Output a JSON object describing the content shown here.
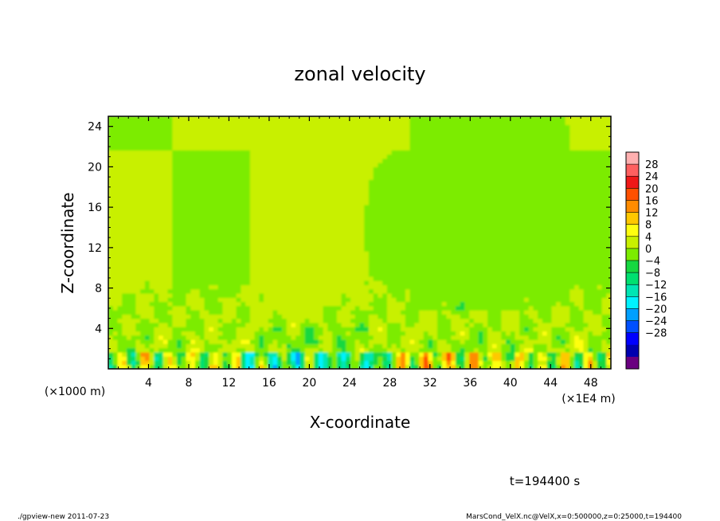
{
  "chart_data": {
    "type": "heatmap",
    "title": "zonal velocity",
    "xlabel": "X-coordinate",
    "ylabel": "Z-coordinate",
    "x_unit_label": "(×1E4 m)",
    "y_unit_label": "(×1000 m)",
    "xlim": [
      0,
      50
    ],
    "ylim": [
      0,
      25
    ],
    "x_ticks": [
      4,
      8,
      12,
      16,
      20,
      24,
      28,
      32,
      36,
      40,
      44,
      48
    ],
    "y_ticks": [
      4,
      8,
      12,
      16,
      20,
      24
    ],
    "colorbar": {
      "levels": [
        28,
        24,
        20,
        16,
        12,
        8,
        4,
        0,
        -4,
        -8,
        -12,
        -16,
        -20,
        -24,
        -28
      ],
      "colors": [
        "#ffb0b0",
        "#ff6060",
        "#f01818",
        "#ff5000",
        "#ff8c00",
        "#ffc800",
        "#ffff10",
        "#c8f000",
        "#7cec00",
        "#16d840",
        "#00e070",
        "#00e6b4",
        "#00f2ff",
        "#00a0ff",
        "#0050ff",
        "#0000ff",
        "#0000b0",
        "#6a0080"
      ]
    },
    "field_description": "values mostly in [-4, 4]; positive streaks near bottom, negative (cyan) patches in lower layer",
    "time_label": "t=194400 s"
  },
  "footer": {
    "left": "./gpview-new   2011-07-23",
    "right": "MarsCond_VelX.nc@VelX,x=0:500000,z=0:25000,t=194400"
  }
}
